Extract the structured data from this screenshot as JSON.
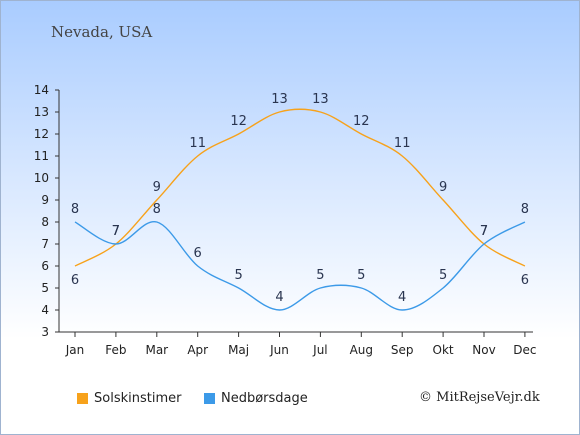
{
  "header": {
    "location": "Nevada, USA"
  },
  "legend": {
    "sun_label": "Solskinstimer",
    "rain_label": "Nedbørsdage"
  },
  "credit": "© MitRejseVejr.dk",
  "colors": {
    "sun": "#f7a21b",
    "rain": "#3c9ae8"
  },
  "chart_data": {
    "type": "line",
    "categories": [
      "Jan",
      "Feb",
      "Mar",
      "Apr",
      "Maj",
      "Jun",
      "Jul",
      "Aug",
      "Sep",
      "Okt",
      "Nov",
      "Dec"
    ],
    "series": [
      {
        "name": "Solskinstimer",
        "values": [
          6,
          7,
          9,
          11,
          12,
          13,
          13,
          12,
          11,
          9,
          7,
          6
        ]
      },
      {
        "name": "Nedbørsdage",
        "values": [
          8,
          7,
          8,
          6,
          5,
          4,
          5,
          5,
          4,
          5,
          7,
          8
        ]
      }
    ],
    "ylim": [
      3,
      14
    ],
    "yticks": [
      3,
      4,
      5,
      6,
      7,
      8,
      9,
      10,
      11,
      12,
      13,
      14
    ],
    "grid": false,
    "legend_position": "bottom-left"
  }
}
